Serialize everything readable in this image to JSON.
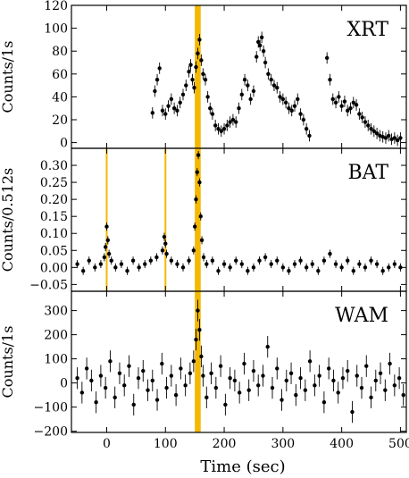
{
  "chart_data": [
    {
      "type": "scatter",
      "panel": "XRT",
      "panel_label": "XRT",
      "ylabel": "Counts/1s",
      "xlim": [
        -60,
        510
      ],
      "ylim": [
        -5,
        120
      ],
      "yticks": [
        0,
        20,
        40,
        60,
        80,
        100,
        120
      ],
      "highlight_band": [
        150,
        160
      ],
      "highlight_lines": [],
      "series": [
        {
          "x": [
            78,
            82,
            86,
            90,
            95,
            100,
            105,
            110,
            115,
            120,
            125,
            130,
            135,
            140,
            143,
            146,
            149,
            152,
            155,
            158,
            161,
            164,
            168,
            172,
            176,
            180,
            185,
            190,
            195,
            200,
            205,
            210,
            215,
            220,
            225,
            230,
            235,
            240,
            245,
            250,
            255,
            258,
            261,
            264,
            267,
            270,
            275,
            280,
            285,
            290,
            295,
            300,
            305,
            310,
            315,
            320,
            325,
            330,
            335,
            340,
            345,
            375,
            380,
            385,
            390,
            395,
            400,
            405,
            410,
            415,
            420,
            425,
            430,
            435,
            440,
            445,
            450,
            455,
            460,
            465,
            470,
            475,
            480,
            485,
            490,
            495,
            500
          ],
          "y": [
            26,
            45,
            55,
            65,
            28,
            25,
            32,
            38,
            30,
            28,
            35,
            42,
            50,
            62,
            68,
            55,
            48,
            66,
            78,
            90,
            72,
            60,
            55,
            40,
            30,
            25,
            15,
            12,
            10,
            12,
            15,
            18,
            20,
            18,
            30,
            42,
            55,
            50,
            38,
            45,
            75,
            88,
            85,
            92,
            80,
            70,
            60,
            55,
            50,
            48,
            40,
            38,
            35,
            30,
            28,
            32,
            38,
            25,
            20,
            12,
            6,
            74,
            55,
            38,
            35,
            40,
            32,
            36,
            28,
            30,
            35,
            33,
            25,
            22,
            18,
            15,
            12,
            10,
            8,
            6,
            5,
            4,
            6,
            3,
            4,
            2,
            4
          ]
        }
      ]
    },
    {
      "type": "scatter",
      "panel": "BAT",
      "panel_label": "BAT",
      "ylabel": "Counts/0.512s",
      "xlim": [
        -60,
        510
      ],
      "ylim": [
        -0.07,
        0.35
      ],
      "yticks": [
        -0.05,
        0.0,
        0.05,
        0.1,
        0.15,
        0.2,
        0.25,
        0.3
      ],
      "ytick_labels": [
        "−0.05",
        "0.00",
        "0.05",
        "0.10",
        "0.15",
        "0.20",
        "0.25",
        "0.30"
      ],
      "highlight_band": [
        150,
        160
      ],
      "highlight_lines": [
        0,
        100
      ],
      "series": [
        {
          "x": [
            -50,
            -40,
            -30,
            -20,
            -10,
            -4,
            -2,
            0,
            2,
            4,
            8,
            15,
            25,
            35,
            45,
            55,
            65,
            75,
            85,
            95,
            98,
            100,
            102,
            110,
            120,
            130,
            140,
            148,
            150,
            152,
            154,
            156,
            158,
            160,
            162,
            165,
            170,
            180,
            190,
            200,
            210,
            220,
            230,
            240,
            250,
            260,
            270,
            280,
            290,
            300,
            310,
            320,
            330,
            340,
            350,
            360,
            370,
            380,
            390,
            400,
            410,
            420,
            430,
            440,
            450,
            460,
            470,
            480,
            490,
            500
          ],
          "y": [
            0.01,
            -0.01,
            0.02,
            0.0,
            0.01,
            0.03,
            0.06,
            0.12,
            0.08,
            0.04,
            0.02,
            0.0,
            0.01,
            -0.01,
            0.02,
            0.0,
            0.01,
            0.02,
            0.03,
            0.05,
            0.09,
            0.07,
            0.04,
            0.02,
            0.01,
            0.0,
            0.02,
            0.05,
            0.12,
            0.2,
            0.28,
            0.33,
            0.25,
            0.15,
            0.08,
            0.03,
            0.01,
            0.02,
            -0.01,
            0.01,
            0.0,
            0.02,
            0.01,
            -0.01,
            0.0,
            0.02,
            0.03,
            0.01,
            0.02,
            0.0,
            -0.01,
            0.01,
            0.02,
            0.0,
            0.01,
            -0.01,
            0.02,
            0.04,
            0.01,
            0.0,
            0.02,
            -0.01,
            0.01,
            0.0,
            0.02,
            0.01,
            -0.01,
            0.0,
            0.01,
            0.0
          ]
        }
      ]
    },
    {
      "type": "scatter",
      "panel": "WAM",
      "panel_label": "WAM",
      "ylabel": "Counts/1s",
      "xlabel": "Time (sec)",
      "xlim": [
        -60,
        510
      ],
      "ylim": [
        -205,
        380
      ],
      "yticks": [
        -200,
        -100,
        0,
        100,
        200,
        300
      ],
      "ytick_labels": [
        "−200",
        "−100",
        "0",
        "100",
        "200",
        "300"
      ],
      "xticks": [
        0,
        100,
        200,
        300,
        400,
        500
      ],
      "highlight_band": [
        150,
        160
      ],
      "highlight_lines": [],
      "series": [
        {
          "x": [
            -50,
            -42,
            -34,
            -26,
            -18,
            -10,
            -2,
            6,
            14,
            22,
            30,
            38,
            46,
            54,
            62,
            70,
            78,
            86,
            94,
            102,
            110,
            118,
            126,
            134,
            142,
            148,
            152,
            155,
            158,
            161,
            164,
            170,
            178,
            186,
            194,
            202,
            210,
            218,
            226,
            234,
            242,
            250,
            258,
            266,
            274,
            282,
            290,
            298,
            306,
            314,
            322,
            330,
            338,
            346,
            354,
            362,
            370,
            378,
            386,
            394,
            402,
            410,
            418,
            426,
            434,
            442,
            450,
            458,
            466,
            474,
            482,
            490,
            498,
            505
          ],
          "y": [
            20,
            -40,
            60,
            10,
            -80,
            30,
            -20,
            90,
            -60,
            40,
            -10,
            70,
            -90,
            20,
            50,
            -30,
            10,
            -70,
            80,
            -20,
            30,
            -50,
            60,
            -10,
            40,
            90,
            180,
            300,
            220,
            110,
            30,
            -60,
            40,
            -20,
            70,
            -90,
            20,
            10,
            -40,
            80,
            -30,
            50,
            -10,
            30,
            150,
            -20,
            60,
            -70,
            10,
            40,
            -50,
            20,
            -30,
            90,
            -10,
            30,
            -80,
            60,
            10,
            -40,
            20,
            50,
            -120,
            30,
            -20,
            70,
            -60,
            10,
            40,
            -30,
            80,
            -10,
            20,
            -50
          ]
        }
      ]
    }
  ],
  "shared_xlabel": "Time (sec)",
  "shared_xticks": [
    0,
    100,
    200,
    300,
    400,
    500
  ],
  "colors": {
    "highlight": "#f5b800",
    "data": "#000000"
  }
}
